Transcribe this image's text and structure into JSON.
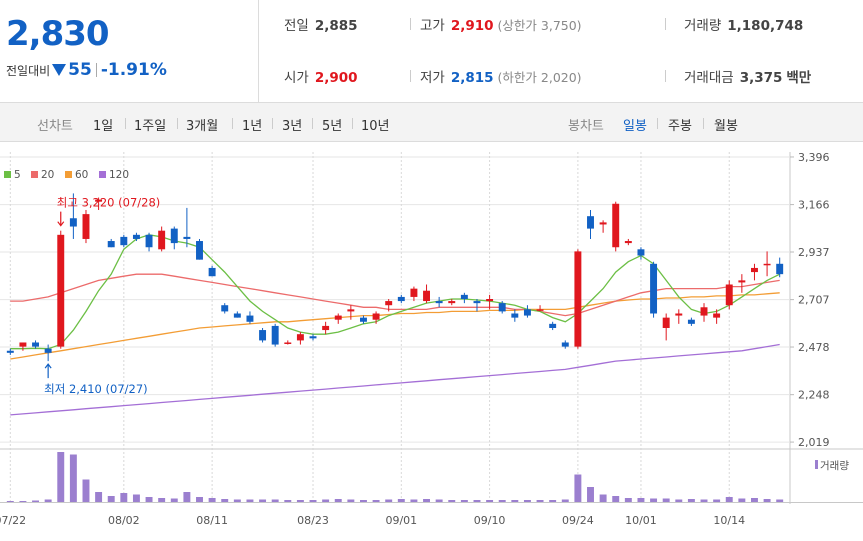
{
  "summary": {
    "price": "2,830",
    "change_label": "전일대비",
    "change_value": "55",
    "change_pct": "-1.91%"
  },
  "stats": {
    "prev_label": "전일",
    "prev_value": "2,885",
    "high_label": "고가",
    "high_value": "2,910",
    "upper_limit": "(상한가 3,750)",
    "volume_label": "거래량",
    "volume_value": "1,180,748",
    "open_label": "시가",
    "open_value": "2,900",
    "low_label": "저가",
    "low_value": "2,815",
    "lower_limit": "(하한가 2,020)",
    "amount_label": "거래대금",
    "amount_value": "3,375",
    "amount_unit": "백만"
  },
  "tabs": {
    "line_label": "선차트",
    "line_items": [
      "1일",
      "1주일",
      "3개월",
      "1년",
      "3년",
      "5년",
      "10년"
    ],
    "candle_label": "봉차트",
    "candle_items": [
      "일봉",
      "주봉",
      "월봉"
    ],
    "candle_active": "일봉"
  },
  "colors": {
    "up": "#e0171e",
    "down": "#1261c4",
    "ma5": "#6cbf45",
    "ma20": "#ec6b6b",
    "ma60": "#f39d35",
    "ma120": "#a46fd6",
    "volume": "#9b7fcf"
  },
  "chart_data": {
    "type": "candlestick",
    "legend": [
      {
        "name": "5",
        "color": "#6cbf45"
      },
      {
        "name": "20",
        "color": "#ec6b6b"
      },
      {
        "name": "60",
        "color": "#f39d35"
      },
      {
        "name": "120",
        "color": "#a46fd6"
      }
    ],
    "y_ticks": [
      "3,396",
      "3,166",
      "2,937",
      "2,707",
      "2,478",
      "2,248",
      "2,019"
    ],
    "y_tick_values": [
      3396,
      3166,
      2937,
      2707,
      2478,
      2248,
      2019
    ],
    "ylim": [
      2000,
      3420
    ],
    "x_tick_labels": [
      {
        "label": "07/22",
        "i": 0
      },
      {
        "label": "08/02",
        "i": 9
      },
      {
        "label": "08/11",
        "i": 16
      },
      {
        "label": "08/23",
        "i": 24
      },
      {
        "label": "09/01",
        "i": 31
      },
      {
        "label": "09/10",
        "i": 38
      },
      {
        "label": "09/24",
        "i": 45
      },
      {
        "label": "10/01",
        "i": 50
      },
      {
        "label": "10/14",
        "i": 57
      }
    ],
    "annotations": {
      "high": {
        "text": "최고 3,220 (07/28)",
        "i": 4
      },
      "low": {
        "text": "최저 2,410 (07/27)",
        "i": 3
      }
    },
    "volume_label": "거래량",
    "ohlc": [
      [
        2460,
        2470,
        2440,
        2450
      ],
      [
        2480,
        2500,
        2460,
        2500
      ],
      [
        2500,
        2510,
        2470,
        2480
      ],
      [
        2470,
        2490,
        2410,
        2450
      ],
      [
        2480,
        3040,
        2470,
        3020
      ],
      [
        3100,
        3220,
        3000,
        3060
      ],
      [
        3000,
        3140,
        2980,
        3120
      ],
      [
        3180,
        3200,
        3140,
        3190
      ],
      [
        2990,
        3000,
        2960,
        2960
      ],
      [
        3010,
        3020,
        2960,
        2970
      ],
      [
        3020,
        3030,
        2990,
        3000
      ],
      [
        3020,
        3030,
        2940,
        2960
      ],
      [
        2950,
        3060,
        2940,
        3040
      ],
      [
        3050,
        3060,
        2950,
        2980
      ],
      [
        3010,
        3150,
        2960,
        3000
      ],
      [
        2990,
        3000,
        2900,
        2900
      ],
      [
        2860,
        2870,
        2820,
        2820
      ],
      [
        2680,
        2690,
        2640,
        2650
      ],
      [
        2640,
        2650,
        2620,
        2620
      ],
      [
        2630,
        2650,
        2590,
        2600
      ],
      [
        2560,
        2570,
        2500,
        2510
      ],
      [
        2580,
        2590,
        2480,
        2490
      ],
      [
        2500,
        2510,
        2490,
        2500
      ],
      [
        2510,
        2550,
        2490,
        2540
      ],
      [
        2530,
        2540,
        2510,
        2520
      ],
      [
        2560,
        2600,
        2540,
        2580
      ],
      [
        2610,
        2640,
        2590,
        2630
      ],
      [
        2650,
        2680,
        2610,
        2660
      ],
      [
        2620,
        2630,
        2590,
        2600
      ],
      [
        2610,
        2650,
        2590,
        2640
      ],
      [
        2680,
        2710,
        2650,
        2700
      ],
      [
        2720,
        2730,
        2690,
        2700
      ],
      [
        2720,
        2770,
        2700,
        2760
      ],
      [
        2700,
        2780,
        2690,
        2750
      ],
      [
        2700,
        2720,
        2670,
        2690
      ],
      [
        2690,
        2710,
        2680,
        2700
      ],
      [
        2730,
        2740,
        2690,
        2710
      ],
      [
        2700,
        2710,
        2650,
        2690
      ],
      [
        2700,
        2730,
        2660,
        2710
      ],
      [
        2690,
        2700,
        2640,
        2650
      ],
      [
        2640,
        2660,
        2600,
        2620
      ],
      [
        2660,
        2680,
        2620,
        2630
      ],
      [
        2660,
        2680,
        2650,
        2660
      ],
      [
        2590,
        2600,
        2560,
        2570
      ],
      [
        2500,
        2510,
        2470,
        2480
      ],
      [
        2480,
        2950,
        2470,
        2940
      ],
      [
        3110,
        3140,
        3000,
        3050
      ],
      [
        3070,
        3090,
        3030,
        3080
      ],
      [
        2960,
        3180,
        2940,
        3170
      ],
      [
        2980,
        3000,
        2970,
        2990
      ],
      [
        2950,
        2960,
        2900,
        2920
      ],
      [
        2880,
        2890,
        2620,
        2640
      ],
      [
        2570,
        2640,
        2510,
        2620
      ],
      [
        2630,
        2660,
        2590,
        2640
      ],
      [
        2610,
        2620,
        2580,
        2590
      ],
      [
        2630,
        2690,
        2600,
        2670
      ],
      [
        2620,
        2660,
        2590,
        2640
      ],
      [
        2680,
        2800,
        2660,
        2780
      ],
      [
        2790,
        2830,
        2740,
        2800
      ],
      [
        2840,
        2880,
        2800,
        2860
      ],
      [
        2880,
        2940,
        2820,
        2880
      ],
      [
        2880,
        2910,
        2815,
        2830
      ]
    ],
    "ma5": [
      2470,
      2470,
      2472,
      2470,
      2490,
      2560,
      2650,
      2750,
      2830,
      2950,
      3000,
      3020,
      3010,
      2990,
      2980,
      2960,
      2900,
      2840,
      2770,
      2700,
      2650,
      2610,
      2570,
      2550,
      2540,
      2540,
      2550,
      2570,
      2590,
      2600,
      2630,
      2650,
      2670,
      2690,
      2700,
      2710,
      2710,
      2705,
      2700,
      2690,
      2680,
      2660,
      2650,
      2620,
      2600,
      2640,
      2700,
      2760,
      2840,
      2890,
      2920,
      2880,
      2800,
      2720,
      2660,
      2640,
      2650,
      2680,
      2720,
      2760,
      2800,
      2830
    ],
    "ma20": [
      2700,
      2700,
      2710,
      2720,
      2740,
      2760,
      2780,
      2800,
      2810,
      2820,
      2830,
      2830,
      2830,
      2820,
      2810,
      2800,
      2790,
      2780,
      2770,
      2760,
      2750,
      2740,
      2730,
      2720,
      2710,
      2700,
      2690,
      2680,
      2670,
      2670,
      2660,
      2660,
      2660,
      2660,
      2670,
      2670,
      2670,
      2670,
      2670,
      2670,
      2660,
      2660,
      2650,
      2640,
      2630,
      2640,
      2660,
      2680,
      2700,
      2720,
      2740,
      2750,
      2760,
      2760,
      2760,
      2760,
      2760,
      2770,
      2770,
      2780,
      2790,
      2800
    ],
    "ma60": [
      2420,
      2430,
      2440,
      2450,
      2460,
      2470,
      2480,
      2490,
      2500,
      2510,
      2520,
      2530,
      2540,
      2550,
      2560,
      2570,
      2575,
      2580,
      2585,
      2590,
      2595,
      2600,
      2600,
      2605,
      2610,
      2615,
      2620,
      2625,
      2630,
      2630,
      2635,
      2640,
      2640,
      2645,
      2645,
      2650,
      2650,
      2650,
      2655,
      2655,
      2655,
      2660,
      2660,
      2660,
      2660,
      2670,
      2680,
      2690,
      2700,
      2705,
      2710,
      2710,
      2715,
      2715,
      2720,
      2720,
      2725,
      2725,
      2730,
      2730,
      2735,
      2740
    ],
    "ma120": [
      2150,
      2155,
      2160,
      2165,
      2170,
      2175,
      2180,
      2185,
      2190,
      2195,
      2200,
      2205,
      2210,
      2215,
      2220,
      2225,
      2230,
      2235,
      2240,
      2245,
      2250,
      2255,
      2260,
      2265,
      2270,
      2275,
      2280,
      2285,
      2290,
      2295,
      2300,
      2305,
      2310,
      2315,
      2320,
      2325,
      2330,
      2335,
      2340,
      2345,
      2350,
      2355,
      2360,
      2365,
      2370,
      2380,
      2390,
      2400,
      2410,
      2415,
      2420,
      2425,
      2430,
      2435,
      2440,
      2445,
      2450,
      2455,
      2460,
      2470,
      2480,
      2490
    ],
    "volume": [
      0.02,
      0.02,
      0.03,
      0.05,
      1.0,
      0.95,
      0.45,
      0.2,
      0.12,
      0.18,
      0.15,
      0.1,
      0.08,
      0.07,
      0.2,
      0.1,
      0.08,
      0.06,
      0.05,
      0.05,
      0.05,
      0.05,
      0.04,
      0.04,
      0.04,
      0.05,
      0.06,
      0.05,
      0.04,
      0.04,
      0.05,
      0.06,
      0.05,
      0.06,
      0.05,
      0.04,
      0.04,
      0.04,
      0.04,
      0.04,
      0.04,
      0.04,
      0.04,
      0.04,
      0.05,
      0.55,
      0.3,
      0.15,
      0.12,
      0.08,
      0.08,
      0.07,
      0.07,
      0.05,
      0.06,
      0.05,
      0.05,
      0.1,
      0.07,
      0.08,
      0.06,
      0.05
    ]
  }
}
